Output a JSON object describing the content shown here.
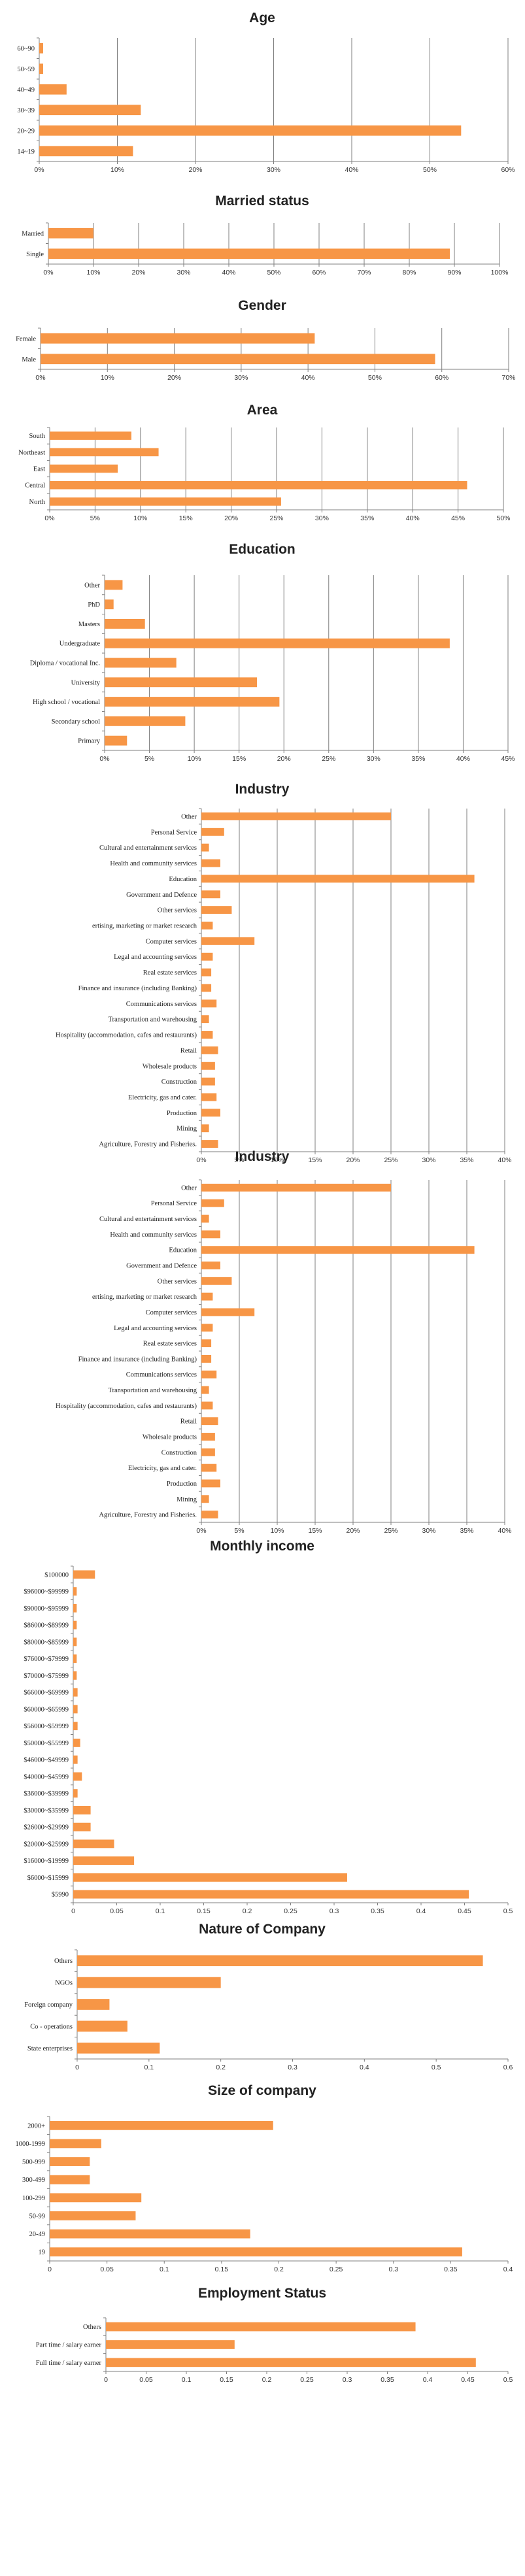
{
  "bar_color": "#F79646",
  "grid_color": "#7F7F7F",
  "chart_data": [
    {
      "type": "bar",
      "orientation": "horizontal",
      "title": "Age",
      "categories": [
        "14~19",
        "20~29",
        "30~39",
        "40~49",
        "50~59",
        "60~90"
      ],
      "values": [
        12,
        54,
        13,
        3.5,
        0.5,
        0.5
      ],
      "xlim": [
        0,
        60
      ],
      "x_ticks": [
        "0%",
        "10%",
        "20%",
        "30%",
        "40%",
        "50%",
        "60%"
      ],
      "grid": true
    },
    {
      "type": "bar",
      "orientation": "horizontal",
      "title": "Married status",
      "categories": [
        "Single",
        "Married"
      ],
      "values": [
        89,
        10
      ],
      "xlim": [
        0,
        100
      ],
      "x_ticks": [
        "0%",
        "10%",
        "20%",
        "30%",
        "40%",
        "50%",
        "60%",
        "70%",
        "80%",
        "90%",
        "100%"
      ],
      "grid": true
    },
    {
      "type": "bar",
      "orientation": "horizontal",
      "title": "Gender",
      "categories": [
        "Male",
        "Female"
      ],
      "values": [
        59,
        41
      ],
      "xlim": [
        0,
        70
      ],
      "x_ticks": [
        "0%",
        "10%",
        "20%",
        "30%",
        "40%",
        "50%",
        "60%",
        "70%"
      ],
      "grid": true
    },
    {
      "type": "bar",
      "orientation": "horizontal",
      "title": "Area",
      "categories": [
        "North",
        "Central",
        "East",
        "Northeast",
        "South"
      ],
      "values": [
        25.5,
        46,
        7.5,
        12,
        9
      ],
      "xlim": [
        0,
        50
      ],
      "x_ticks": [
        "0%",
        "5%",
        "10%",
        "15%",
        "20%",
        "25%",
        "30%",
        "35%",
        "40%",
        "45%",
        "50%"
      ],
      "grid": true
    },
    {
      "type": "bar",
      "orientation": "horizontal",
      "title": "Education",
      "categories": [
        "Primary",
        "Secondary school",
        "High school / vocational",
        "University",
        "Diploma / vocational Inc.",
        "Undergraduate",
        "Masters",
        "PhD",
        "Other"
      ],
      "values": [
        2.5,
        9,
        19.5,
        17,
        8,
        38.5,
        4.5,
        1,
        2
      ],
      "xlim": [
        0,
        45
      ],
      "x_ticks": [
        "0%",
        "5%",
        "10%",
        "15%",
        "20%",
        "25%",
        "30%",
        "35%",
        "40%",
        "45%"
      ],
      "grid": true
    },
    {
      "type": "bar",
      "orientation": "horizontal",
      "title": "Industry",
      "categories": [
        "Agriculture, Forestry and Fisheries.",
        "Mining",
        "Production",
        "Electricity, gas and cater.",
        "Construction",
        "Wholesale products",
        "Retail",
        "Hospitality (accommodation, cafes and restaurants)",
        "Transportation and warehousing",
        "Communications services",
        "Finance and insurance (including Banking)",
        "Real estate services",
        "Legal and accounting services",
        "Computer services",
        "ertising, marketing or market research",
        "Other services",
        "Government and Defence",
        "Education",
        "Health and community services",
        "Cultural and entertainment services",
        "Personal Service",
        "Other"
      ],
      "values": [
        2.2,
        1,
        2.5,
        2,
        1.8,
        1.8,
        2.2,
        1.5,
        1,
        2,
        1.3,
        1.3,
        1.5,
        7,
        1.5,
        4,
        2.5,
        36,
        2.5,
        1,
        3,
        25
      ],
      "xlim": [
        0,
        40
      ],
      "x_ticks": [
        "0%",
        "5%",
        "10%",
        "15%",
        "20%",
        "25%",
        "30%",
        "35%",
        "40%"
      ],
      "grid": true
    },
    {
      "type": "bar",
      "orientation": "horizontal",
      "title": "Industry",
      "categories": [
        "Agriculture, Forestry and Fisheries.",
        "Mining",
        "Production",
        "Electricity, gas and cater.",
        "Construction",
        "Wholesale products",
        "Retail",
        "Hospitality (accommodation, cafes and restaurants)",
        "Transportation and warehousing",
        "Communications services",
        "Finance and insurance (including Banking)",
        "Real estate services",
        "Legal and accounting services",
        "Computer services",
        "ertising, marketing or market research",
        "Other services",
        "Government and Defence",
        "Education",
        "Health and community services",
        "Cultural and entertainment services",
        "Personal Service",
        "Other"
      ],
      "values": [
        2.2,
        1,
        2.5,
        2,
        1.8,
        1.8,
        2.2,
        1.5,
        1,
        2,
        1.3,
        1.3,
        1.5,
        7,
        1.5,
        4,
        2.5,
        36,
        2.5,
        1,
        3,
        25
      ],
      "xlim": [
        0,
        40
      ],
      "x_ticks": [
        "0%",
        "5%",
        "10%",
        "15%",
        "20%",
        "25%",
        "30%",
        "35%",
        "40%"
      ],
      "grid": true
    },
    {
      "type": "bar",
      "orientation": "horizontal",
      "title": "Monthly income",
      "categories": [
        "$5990",
        "$6000~$15999",
        "$16000~$19999",
        "$20000~$25999",
        "$26000~$29999",
        "$30000~$35999",
        "$36000~$39999",
        "$40000~$45999",
        "$46000~$49999",
        "$50000~$55999",
        "$56000~$59999",
        "$60000~$65999",
        "$66000~$69999",
        "$70000~$75999",
        "$76000~$79999",
        "$80000~$85999",
        "$86000~$89999",
        "$90000~$95999",
        "$96000~$99999",
        "$100000"
      ],
      "values": [
        0.455,
        0.315,
        0.07,
        0.047,
        0.02,
        0.02,
        0.005,
        0.01,
        0.005,
        0.008,
        0.005,
        0.005,
        0.005,
        0.004,
        0.004,
        0.004,
        0.004,
        0.004,
        0.004,
        0.025
      ],
      "xlim": [
        0,
        0.5
      ],
      "x_ticks": [
        "0",
        "0.05",
        "0.1",
        "0.15",
        "0.2",
        "0.25",
        "0.3",
        "0.35",
        "0.4",
        "0.45",
        "0.5"
      ],
      "grid": false
    },
    {
      "type": "bar",
      "orientation": "horizontal",
      "title": "Nature of Company",
      "categories": [
        "State enterprises",
        "Co - operations",
        "Foreign company",
        "NGOs",
        "Others"
      ],
      "values": [
        0.115,
        0.07,
        0.045,
        0.2,
        0.565
      ],
      "xlim": [
        0,
        0.6
      ],
      "x_ticks": [
        "0",
        "0.1",
        "0.2",
        "0.3",
        "0.4",
        "0.5",
        "0.6"
      ],
      "grid": false
    },
    {
      "type": "bar",
      "orientation": "horizontal",
      "title": "Size of company",
      "categories": [
        "19",
        "20-49",
        "50-99",
        "100-299",
        "300-499",
        "500-999",
        "1000-1999",
        "2000+"
      ],
      "values": [
        0.36,
        0.175,
        0.075,
        0.08,
        0.035,
        0.035,
        0.045,
        0.195
      ],
      "xlim": [
        0,
        0.4
      ],
      "x_ticks": [
        "0",
        "0.05",
        "0.1",
        "0.15",
        "0.2",
        "0.25",
        "0.3",
        "0.35",
        "0.4"
      ],
      "grid": false
    },
    {
      "type": "bar",
      "orientation": "horizontal",
      "title": "Employment Status",
      "categories": [
        "Full time / salary earner",
        "Part time / salary earner",
        "Others"
      ],
      "values": [
        0.46,
        0.16,
        0.385
      ],
      "xlim": [
        0,
        0.5
      ],
      "x_ticks": [
        "0",
        "0.05",
        "0.1",
        "0.15",
        "0.2",
        "0.25",
        "0.3",
        "0.35",
        "0.4",
        "0.45",
        "0.5"
      ],
      "grid": false
    }
  ]
}
